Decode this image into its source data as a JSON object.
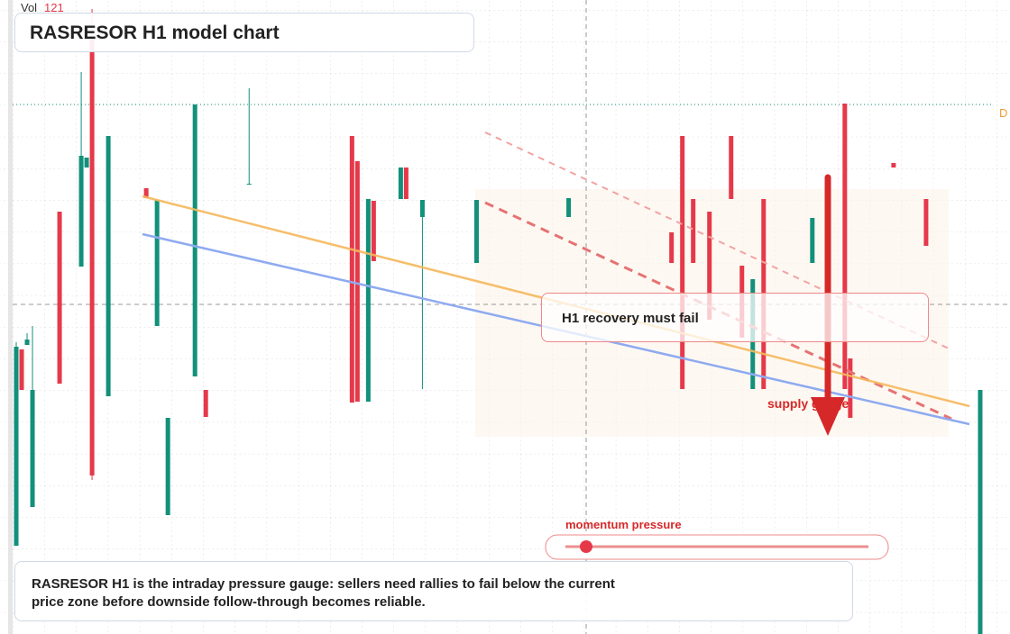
{
  "chart_data": {
    "type": "candlestick",
    "title": "RASRESOR H1 model chart",
    "volume_label": "Vol",
    "volume_value": 121,
    "edge_label": "D",
    "callout": "H1 recovery must fail",
    "zone_label": "supply gauge",
    "gauge_label": "momentum pressure",
    "note": "RASRESOR H1 is the intraday pressure gauge: sellers need rallies to fail below the current price zone before downside follow-through becomes reliable.",
    "up_color": "#12907a",
    "down_color": "#e5394a",
    "xlim": [
      -3,
      183.5
    ],
    "ylim": [
      0,
      704
    ],
    "x": [
      0,
      1,
      2,
      3,
      8,
      12,
      13,
      14,
      17,
      24,
      26,
      28,
      33,
      35,
      43,
      62,
      63,
      65,
      66,
      71,
      72,
      75,
      85,
      102,
      121,
      123,
      125,
      128,
      132,
      134,
      136,
      138,
      147,
      153,
      154,
      162,
      168,
      178
    ],
    "open": [
      98,
      316,
      321,
      141,
      469,
      408,
      518,
      664,
      264,
      495,
      342,
      132,
      286,
      271,
      499,
      553,
      525,
      258,
      481,
      483,
      518,
      463,
      412,
      463,
      446,
      553,
      483,
      469,
      553,
      409,
      272,
      483,
      412,
      589,
      306,
      523,
      483,
      0
    ],
    "high": [
      324,
      316,
      334,
      342,
      469,
      624,
      529,
      694,
      553,
      495,
      482,
      240,
      588,
      271,
      606,
      553,
      525,
      483,
      481,
      518,
      518,
      482,
      482,
      484,
      446,
      553,
      483,
      469,
      553,
      409,
      394,
      483,
      462,
      589,
      306,
      523,
      483,
      271
    ],
    "low": [
      98,
      271,
      321,
      141,
      278,
      408,
      518,
      171,
      264,
      484,
      342,
      132,
      286,
      241,
      499,
      257,
      258,
      258,
      414,
      483,
      483,
      272,
      412,
      463,
      412,
      272,
      412,
      349,
      483,
      329,
      272,
      272,
      412,
      272,
      240,
      518,
      431,
      0
    ],
    "close": [
      319,
      271,
      327,
      271,
      278,
      531,
      529,
      176,
      553,
      484,
      482,
      240,
      588,
      241,
      500,
      257,
      258,
      483,
      414,
      518,
      483,
      482,
      482,
      484,
      412,
      272,
      412,
      349,
      483,
      329,
      394,
      272,
      462,
      272,
      240,
      518,
      431,
      271
    ]
  }
}
